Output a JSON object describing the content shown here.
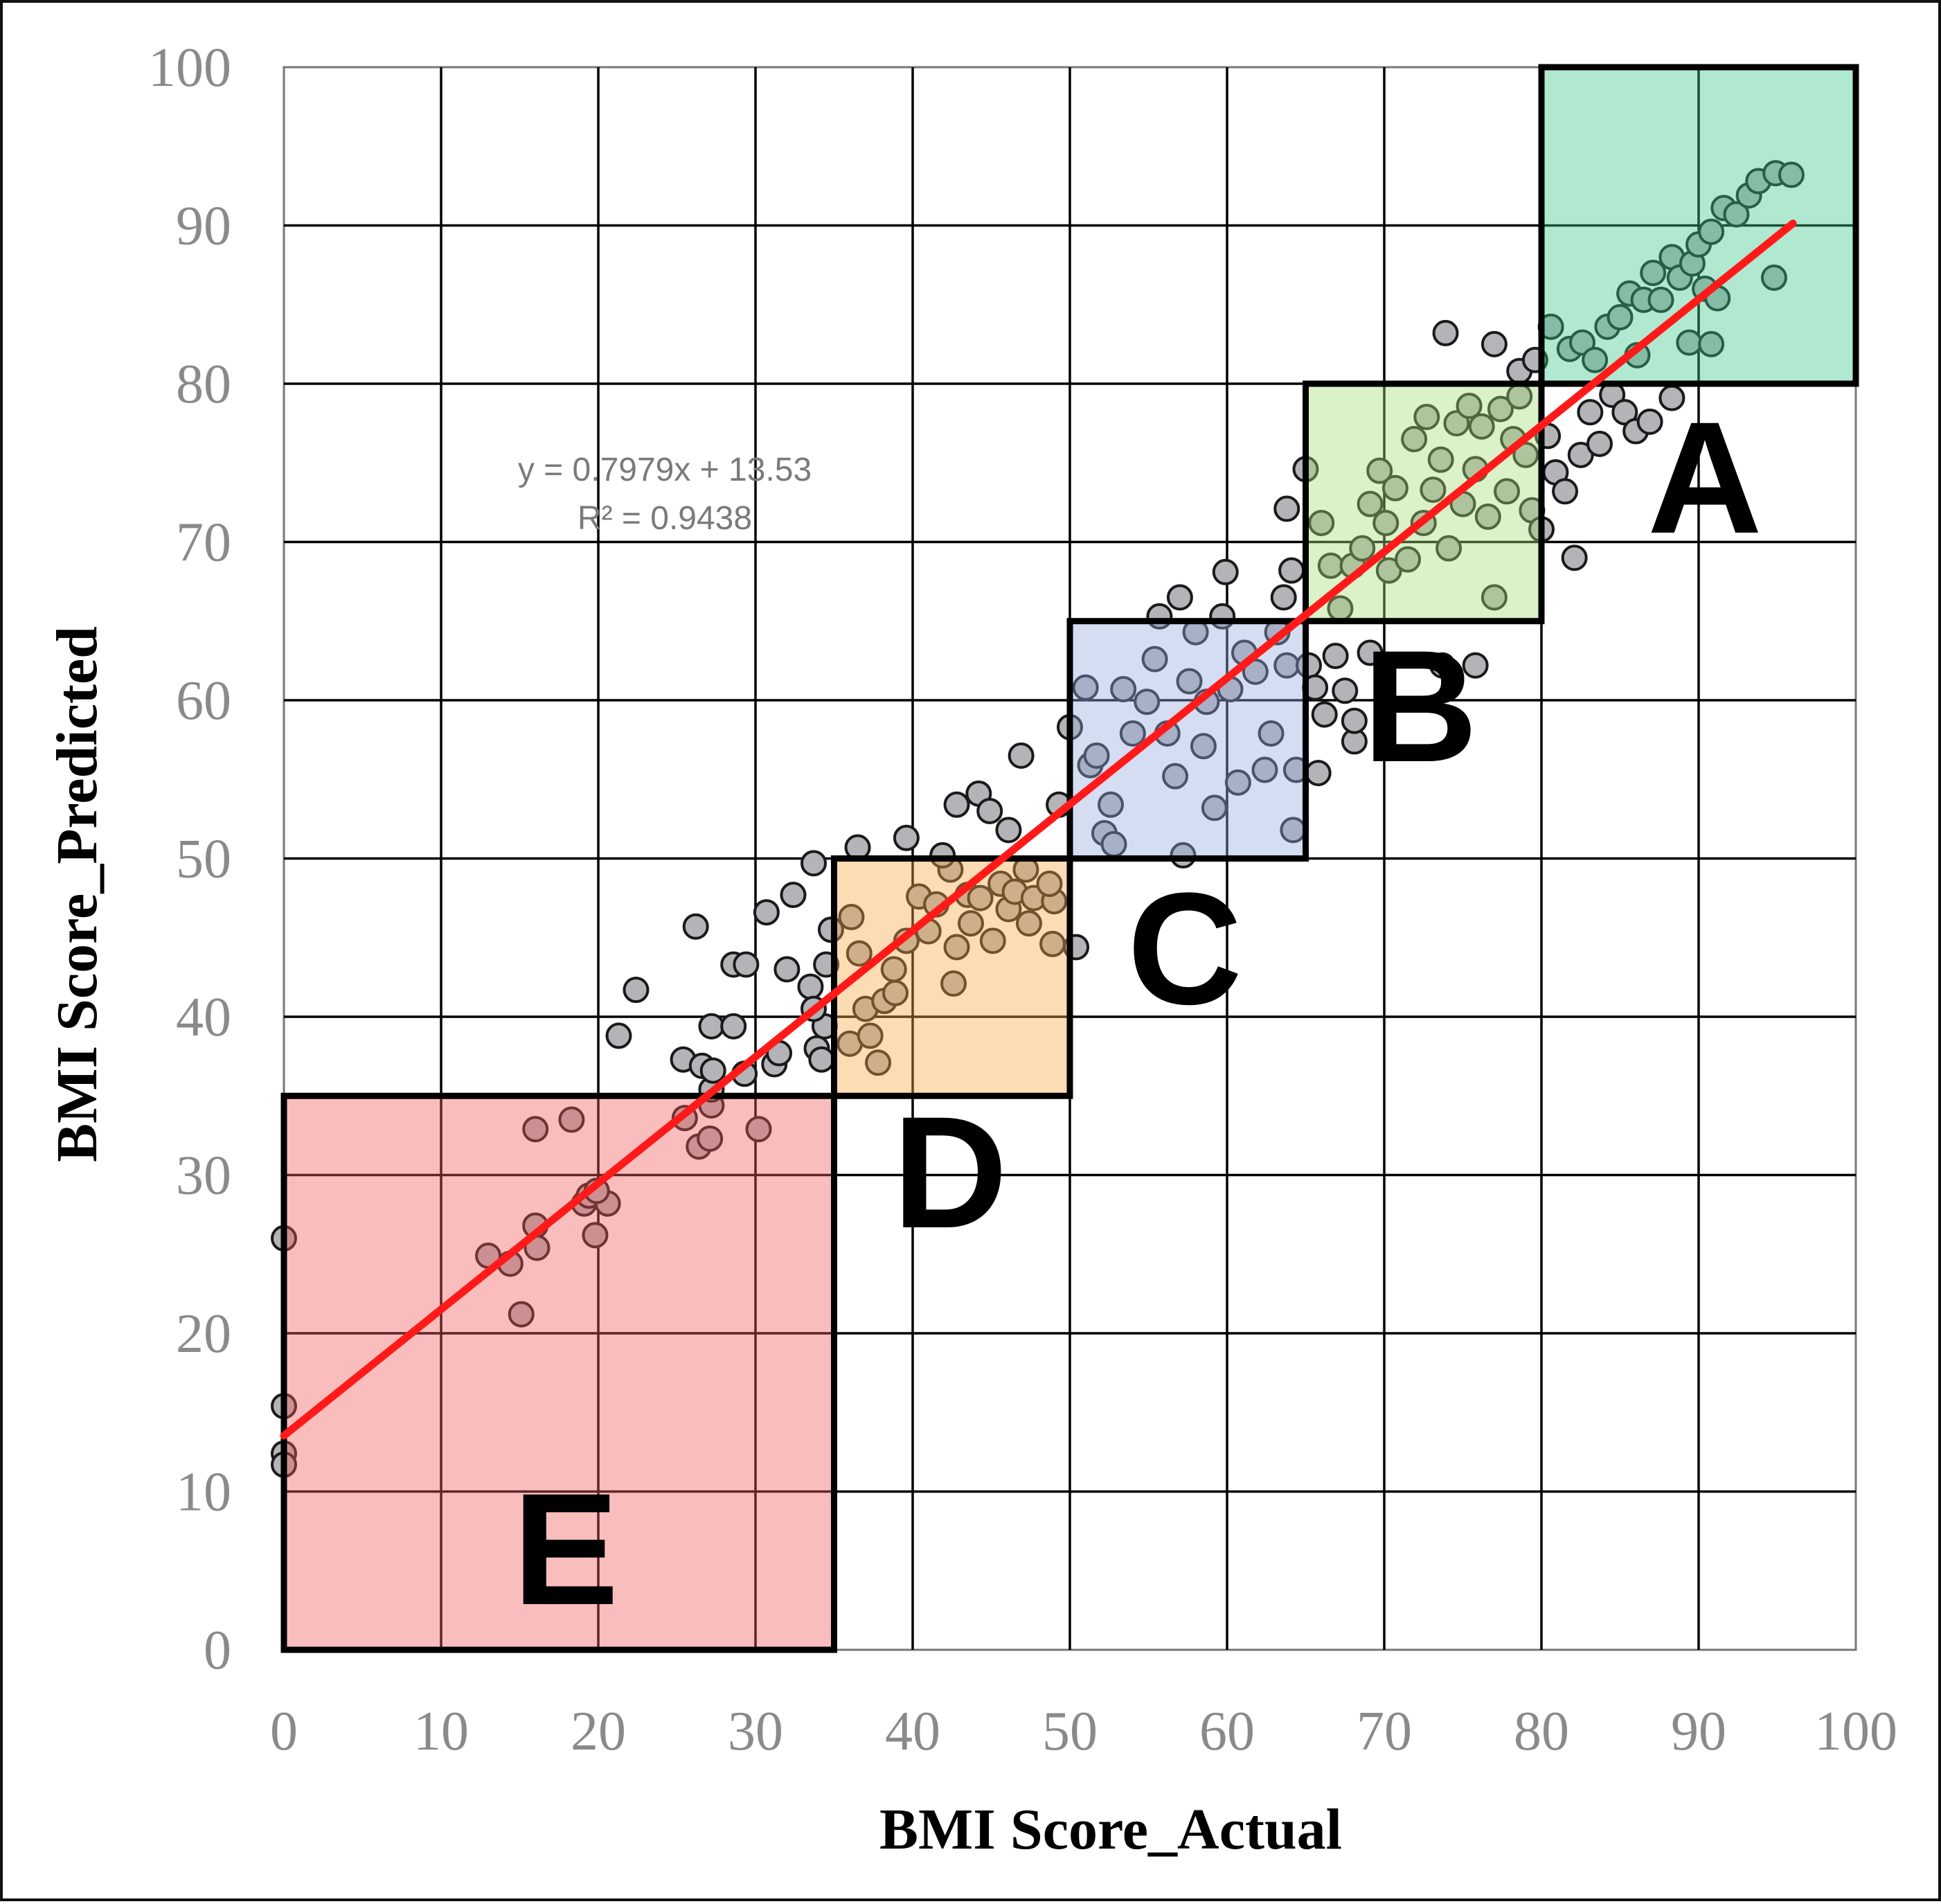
{
  "chart_data": {
    "type": "scatter",
    "xlabel": "BMI Score_Actual",
    "ylabel": "BMI Score_Predicted",
    "xlim": [
      0,
      100
    ],
    "ylim": [
      0,
      100
    ],
    "xticks": [
      "0",
      "10",
      "20",
      "30",
      "40",
      "50",
      "60",
      "70",
      "80",
      "90",
      "100"
    ],
    "yticks": [
      "0",
      "10",
      "20",
      "30",
      "40",
      "50",
      "60",
      "70",
      "80",
      "90",
      "100"
    ],
    "grid": true,
    "trendline": {
      "slope": 0.7979,
      "intercept": 13.53,
      "x_range": [
        0,
        96
      ],
      "color": "#ff1a1a",
      "equation_label": "y = 0.7979x + 13.53",
      "r2_label": "R² = 0.9438"
    },
    "zones": [
      {
        "label": "A",
        "x": [
          80,
          100
        ],
        "y": [
          80,
          100
        ],
        "color": "#3cc98a"
      },
      {
        "label": "B",
        "x": [
          65,
          80
        ],
        "y": [
          65,
          80
        ],
        "color": "#a6dc74"
      },
      {
        "label": "C",
        "x": [
          50,
          65
        ],
        "y": [
          50,
          65
        ],
        "color": "#94a9dc"
      },
      {
        "label": "D",
        "x": [
          35,
          50
        ],
        "y": [
          35,
          50
        ],
        "color": "#f5a843"
      },
      {
        "label": "E",
        "x": [
          0,
          35
        ],
        "y": [
          0,
          35
        ],
        "color": "#f25a5a"
      }
    ],
    "point_color": "#b4b4b8",
    "points": [
      [
        0,
        26
      ],
      [
        0,
        15.4
      ],
      [
        0,
        12.4
      ],
      [
        0,
        11.7
      ],
      [
        13,
        24.9
      ],
      [
        14.4,
        24.4
      ],
      [
        15.1,
        21.2
      ],
      [
        16,
        26.8
      ],
      [
        16.1,
        25.4
      ],
      [
        16,
        32.9
      ],
      [
        18.3,
        33.5
      ],
      [
        19.1,
        28.2
      ],
      [
        19.4,
        28.7
      ],
      [
        19.8,
        26.2
      ],
      [
        20.6,
        28.2
      ],
      [
        19.9,
        29
      ],
      [
        25.5,
        33.6
      ],
      [
        26.4,
        31.8
      ],
      [
        27.1,
        32.3
      ],
      [
        27.2,
        34.4
      ],
      [
        27.2,
        35.4
      ],
      [
        30.2,
        32.9
      ],
      [
        25.4,
        37.3
      ],
      [
        26.6,
        36.9
      ],
      [
        27.2,
        39.4
      ],
      [
        27.3,
        36.6
      ],
      [
        28.6,
        39.4
      ],
      [
        29.3,
        36.4
      ],
      [
        28.6,
        43.3
      ],
      [
        29.4,
        43.3
      ],
      [
        26.2,
        45.7
      ],
      [
        21.3,
        38.8
      ],
      [
        22.4,
        41.7
      ],
      [
        31.2,
        37
      ],
      [
        31.5,
        37.7
      ],
      [
        30.7,
        46.6
      ],
      [
        32,
        43
      ],
      [
        32.4,
        47.7
      ],
      [
        33.7,
        49.7
      ],
      [
        33.5,
        41.9
      ],
      [
        33.9,
        38
      ],
      [
        34.2,
        37.3
      ],
      [
        34.4,
        39.4
      ],
      [
        34.5,
        43.3
      ],
      [
        34.8,
        45.5
      ],
      [
        33.7,
        40.5
      ],
      [
        36.1,
        46.3
      ],
      [
        36,
        38.3
      ],
      [
        36.6,
        44
      ],
      [
        37,
        40.5
      ],
      [
        37.8,
        37.1
      ],
      [
        37.3,
        38.8
      ],
      [
        38.2,
        41
      ],
      [
        38.8,
        43
      ],
      [
        38.9,
        41.5
      ],
      [
        39.6,
        44.8
      ],
      [
        40.4,
        47.6
      ],
      [
        41,
        45.4
      ],
      [
        41.5,
        47.1
      ],
      [
        42.4,
        49.3
      ],
      [
        42.6,
        42.1
      ],
      [
        42.8,
        44.4
      ],
      [
        43.5,
        47.7
      ],
      [
        43.7,
        45.9
      ],
      [
        44.3,
        47.5
      ],
      [
        45.1,
        44.8
      ],
      [
        45.6,
        48.4
      ],
      [
        46.1,
        46.8
      ],
      [
        46.5,
        47.9
      ],
      [
        47.2,
        49.3
      ],
      [
        47.4,
        45.9
      ],
      [
        47.7,
        47.5
      ],
      [
        48.9,
        44.6
      ],
      [
        49,
        47.3
      ],
      [
        48.7,
        48.4
      ],
      [
        36.5,
        50.7
      ],
      [
        39.6,
        51.3
      ],
      [
        41.9,
        50.2
      ],
      [
        42.8,
        53.4
      ],
      [
        44.2,
        54.1
      ],
      [
        44.9,
        53
      ],
      [
        46.9,
        56.5
      ],
      [
        46.1,
        51.8
      ],
      [
        50.4,
        44.4
      ],
      [
        50,
        58.3
      ],
      [
        49.3,
        53.4
      ],
      [
        51,
        60.8
      ],
      [
        51.3,
        55.9
      ],
      [
        51.7,
        56.5
      ],
      [
        52.2,
        51.6
      ],
      [
        52.6,
        53.4
      ],
      [
        52.8,
        50.9
      ],
      [
        53.4,
        60.7
      ],
      [
        54,
        57.9
      ],
      [
        54.9,
        59.9
      ],
      [
        55.4,
        62.6
      ],
      [
        55.7,
        65.3
      ],
      [
        56.2,
        57.9
      ],
      [
        56.7,
        55.2
      ],
      [
        57,
        66.5
      ],
      [
        57.2,
        50.2
      ],
      [
        57.6,
        61.2
      ],
      [
        58,
        64.3
      ],
      [
        58.5,
        57.1
      ],
      [
        58.7,
        59.9
      ],
      [
        59.2,
        53.2
      ],
      [
        59.7,
        65.3
      ],
      [
        59.9,
        68.1
      ],
      [
        60.2,
        60.7
      ],
      [
        60.7,
        54.8
      ],
      [
        61.1,
        63
      ],
      [
        61.8,
        61.8
      ],
      [
        62.4,
        55.6
      ],
      [
        62.8,
        57.9
      ],
      [
        63.2,
        64.3
      ],
      [
        63.8,
        62.2
      ],
      [
        64.2,
        51.8
      ],
      [
        64.4,
        55.6
      ],
      [
        63.6,
        66.5
      ],
      [
        64.1,
        68.2
      ],
      [
        63.8,
        72.1
      ],
      [
        65,
        74.6
      ],
      [
        65.2,
        62.2
      ],
      [
        65.6,
        60.8
      ],
      [
        65.8,
        55.4
      ],
      [
        66.2,
        59.1
      ],
      [
        66.9,
        62.8
      ],
      [
        67.5,
        60.6
      ],
      [
        68.1,
        57.4
      ],
      [
        68.1,
        58.7
      ],
      [
        69.1,
        63
      ],
      [
        66,
        71.2
      ],
      [
        66.6,
        68.5
      ],
      [
        67.2,
        65.8
      ],
      [
        68,
        68.5
      ],
      [
        68.6,
        69.6
      ],
      [
        69.1,
        72.4
      ],
      [
        69.7,
        74.5
      ],
      [
        70.1,
        71.2
      ],
      [
        70.3,
        68.2
      ],
      [
        70.7,
        73.4
      ],
      [
        71.5,
        68.9
      ],
      [
        71.9,
        76.5
      ],
      [
        72.5,
        71.2
      ],
      [
        72.7,
        77.9
      ],
      [
        73.1,
        73.3
      ],
      [
        73.6,
        75.2
      ],
      [
        74.1,
        69.6
      ],
      [
        74.6,
        77.5
      ],
      [
        75,
        72.4
      ],
      [
        75.4,
        78.6
      ],
      [
        75.8,
        74.6
      ],
      [
        76.2,
        77.3
      ],
      [
        76.6,
        71.6
      ],
      [
        77,
        66.5
      ],
      [
        77.4,
        78.4
      ],
      [
        77.8,
        73.2
      ],
      [
        78.2,
        76.5
      ],
      [
        78.6,
        79.2
      ],
      [
        79,
        75.5
      ],
      [
        79.4,
        72
      ],
      [
        73.9,
        83.2
      ],
      [
        73.7,
        62.2
      ],
      [
        75.8,
        62.2
      ],
      [
        77,
        82.5
      ],
      [
        78.6,
        80.8
      ],
      [
        79.6,
        81.5
      ],
      [
        80,
        70.8
      ],
      [
        80.4,
        76.7
      ],
      [
        80.9,
        74.4
      ],
      [
        81.5,
        73.2
      ],
      [
        82.1,
        69
      ],
      [
        82.5,
        75.5
      ],
      [
        83.1,
        78.2
      ],
      [
        83.7,
        76.2
      ],
      [
        84.5,
        79.3
      ],
      [
        85.3,
        78.2
      ],
      [
        86,
        77
      ],
      [
        86.9,
        77.6
      ],
      [
        88.3,
        79.1
      ],
      [
        80.6,
        83.6
      ],
      [
        81.8,
        82.2
      ],
      [
        82.6,
        82.6
      ],
      [
        83.4,
        81.5
      ],
      [
        84.2,
        83.6
      ],
      [
        85,
        84.2
      ],
      [
        85.6,
        85.7
      ],
      [
        86.1,
        81.8
      ],
      [
        86.5,
        85.3
      ],
      [
        87.1,
        87
      ],
      [
        87.6,
        85.3
      ],
      [
        88.3,
        88
      ],
      [
        88.8,
        86.7
      ],
      [
        89.4,
        82.6
      ],
      [
        89.6,
        87.6
      ],
      [
        90,
        88.8
      ],
      [
        90.4,
        86
      ],
      [
        90.8,
        89.6
      ],
      [
        91.2,
        85.4
      ],
      [
        91.6,
        91.1
      ],
      [
        92.4,
        90.7
      ],
      [
        93.2,
        91.9
      ],
      [
        93.8,
        92.8
      ],
      [
        94.8,
        86.7
      ],
      [
        94.9,
        93.3
      ],
      [
        95.9,
        93.2
      ],
      [
        90.8,
        82.5
      ]
    ]
  }
}
